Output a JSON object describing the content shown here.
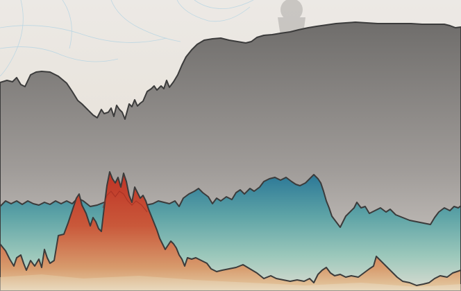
{
  "colors": {
    "paper": "#ebe6df",
    "paper_bottom": "#e6ddcf",
    "gray_top": "#707070",
    "gray_bottom": "#d6d0cb",
    "teal_top": "#2d7c98",
    "teal_mid": "#6fb0a6",
    "teal_bottom": "#d7dad3",
    "red_top": "#c03a2a",
    "red_mid": "#c9623d",
    "sand": "#e3cfac",
    "line": "#3a3a3a",
    "map_line": "#9cc7dd"
  },
  "visual": {
    "description_free": true,
    "layers": [
      "gray-mountain",
      "teal-band",
      "red-peak",
      "sand-foreground"
    ]
  }
}
